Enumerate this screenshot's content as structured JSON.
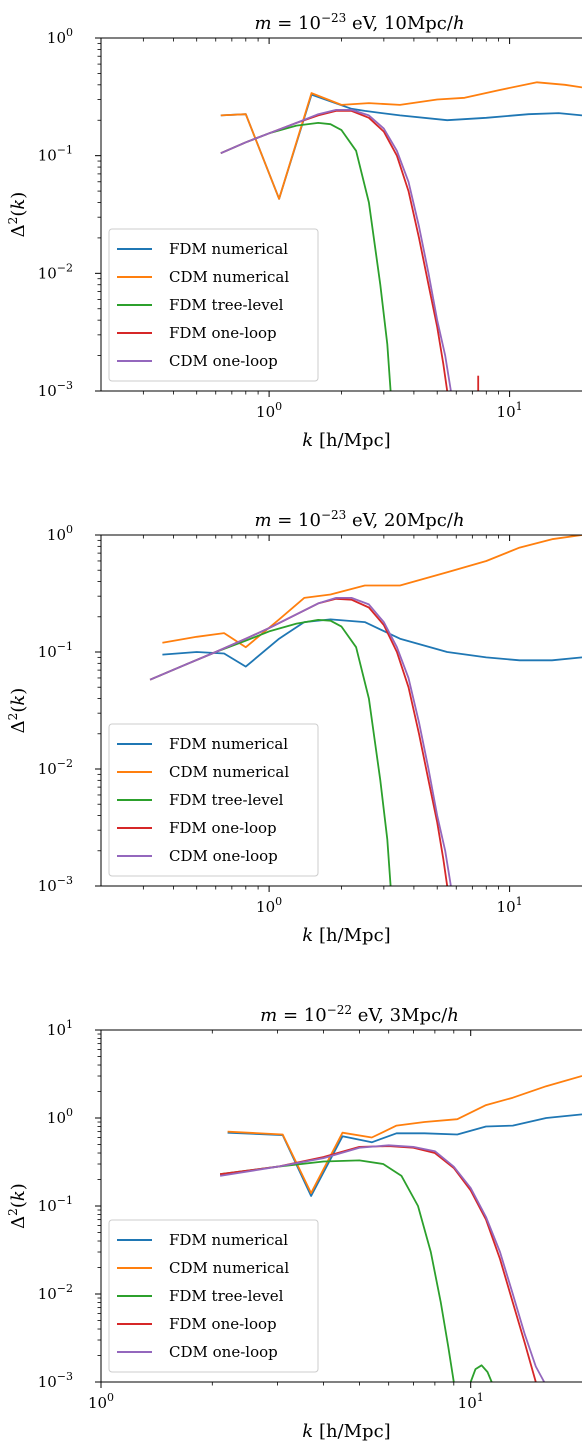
{
  "colors": {
    "FDM numerical": "#1f77b4",
    "CDM numerical": "#ff7f0e",
    "FDM tree-level": "#2ca02c",
    "FDM one-loop": "#d62728",
    "CDM one-loop": "#9467bd"
  },
  "chart_data": [
    {
      "type": "line",
      "title": "m = 10^{-23} eV, 10Mpc/h",
      "title_parts": {
        "pre": "m = 10",
        "exp": "−23",
        "post": " eV,  10Mpc/h"
      },
      "xlabel": "k [h/Mpc]",
      "ylabel": "Δ²(k)",
      "xscale": "log",
      "yscale": "log",
      "xlim": [
        0.2,
        20
      ],
      "ylim": [
        0.001,
        1
      ],
      "xticks": [
        1,
        10
      ],
      "xtick_labels": [
        "10^0",
        "10^1"
      ],
      "yticks": [
        0.001,
        0.01,
        0.1,
        1
      ],
      "ytick_labels": [
        "10^-3",
        "10^-2",
        "10^-1",
        "10^0"
      ],
      "legend": "lower-left",
      "series": [
        {
          "name": "FDM numerical",
          "x": [
            0.63,
            0.8,
            1.1,
            1.5,
            2.2,
            2.5,
            3.5,
            5.5,
            8,
            12,
            16,
            20
          ],
          "y": [
            0.22,
            0.225,
            0.043,
            0.33,
            0.25,
            0.24,
            0.22,
            0.2,
            0.21,
            0.225,
            0.23,
            0.22
          ]
        },
        {
          "name": "CDM numerical",
          "x": [
            0.63,
            0.8,
            1.1,
            1.5,
            2.0,
            2.6,
            3.5,
            5.0,
            6.5,
            9,
            13,
            17,
            20
          ],
          "y": [
            0.22,
            0.225,
            0.043,
            0.34,
            0.27,
            0.28,
            0.27,
            0.3,
            0.31,
            0.36,
            0.42,
            0.4,
            0.38
          ]
        },
        {
          "name": "FDM tree-level",
          "x": [
            0.63,
            0.8,
            1.0,
            1.3,
            1.6,
            1.8,
            2.0,
            2.3,
            2.6,
            2.9,
            3.1,
            3.2
          ],
          "y": [
            0.105,
            0.13,
            0.155,
            0.18,
            0.19,
            0.185,
            0.165,
            0.11,
            0.04,
            0.008,
            0.0025,
            0.001
          ]
        },
        {
          "name": "FDM one-loop",
          "x": [
            0.63,
            0.8,
            1.0,
            1.3,
            1.6,
            1.9,
            2.2,
            2.6,
            3.0,
            3.4,
            3.8,
            4.2,
            4.6,
            5.0,
            5.3,
            5.5
          ],
          "y": [
            0.105,
            0.13,
            0.155,
            0.19,
            0.22,
            0.24,
            0.24,
            0.21,
            0.16,
            0.1,
            0.05,
            0.02,
            0.008,
            0.0035,
            0.0017,
            0.001
          ]
        },
        {
          "name": "CDM one-loop",
          "x": [
            0.63,
            0.8,
            1.0,
            1.3,
            1.6,
            1.9,
            2.2,
            2.6,
            3.0,
            3.4,
            3.8,
            4.2,
            4.6,
            5.0,
            5.4,
            5.7
          ],
          "y": [
            0.105,
            0.13,
            0.155,
            0.19,
            0.225,
            0.245,
            0.245,
            0.22,
            0.17,
            0.11,
            0.06,
            0.025,
            0.01,
            0.004,
            0.002,
            0.001
          ]
        }
      ],
      "extra_marks": [
        {
          "series": "FDM one-loop",
          "x": [
            7.4,
            7.4
          ],
          "y": [
            0.001,
            0.00135
          ]
        }
      ]
    },
    {
      "type": "line",
      "title": "m = 10^{-23} eV, 20Mpc/h",
      "title_parts": {
        "pre": "m = 10",
        "exp": "−23",
        "post": " eV,  20Mpc/h"
      },
      "xlabel": "k [h/Mpc]",
      "ylabel": "Δ²(k)",
      "xscale": "log",
      "yscale": "log",
      "xlim": [
        0.2,
        20
      ],
      "ylim": [
        0.001,
        1
      ],
      "xticks": [
        1,
        10
      ],
      "xtick_labels": [
        "10^0",
        "10^1"
      ],
      "yticks": [
        0.001,
        0.01,
        0.1,
        1
      ],
      "ytick_labels": [
        "10^-3",
        "10^-2",
        "10^-1",
        "10^0"
      ],
      "legend": "lower-left",
      "series": [
        {
          "name": "FDM numerical",
          "x": [
            0.36,
            0.5,
            0.65,
            0.8,
            1.1,
            1.4,
            1.8,
            2.5,
            3.5,
            5.5,
            8,
            11,
            15,
            20
          ],
          "y": [
            0.095,
            0.1,
            0.097,
            0.075,
            0.13,
            0.18,
            0.19,
            0.18,
            0.13,
            0.1,
            0.09,
            0.085,
            0.085,
            0.09
          ]
        },
        {
          "name": "CDM numerical",
          "x": [
            0.36,
            0.5,
            0.65,
            0.8,
            1.1,
            1.4,
            1.8,
            2.5,
            3.5,
            5.5,
            8,
            11,
            15,
            20
          ],
          "y": [
            0.12,
            0.135,
            0.145,
            0.11,
            0.19,
            0.29,
            0.31,
            0.37,
            0.37,
            0.48,
            0.6,
            0.78,
            0.92,
            1.0
          ]
        },
        {
          "name": "FDM tree-level",
          "x": [
            0.32,
            0.45,
            0.6,
            0.8,
            1.0,
            1.3,
            1.6,
            1.8,
            2.0,
            2.3,
            2.6,
            2.9,
            3.1,
            3.2
          ],
          "y": [
            0.058,
            0.078,
            0.1,
            0.125,
            0.15,
            0.175,
            0.188,
            0.185,
            0.165,
            0.11,
            0.04,
            0.008,
            0.0025,
            0.001
          ]
        },
        {
          "name": "FDM one-loop",
          "x": [
            0.32,
            0.45,
            0.6,
            0.8,
            1.0,
            1.3,
            1.6,
            1.9,
            2.2,
            2.6,
            3.0,
            3.4,
            3.8,
            4.2,
            4.6,
            5.0,
            5.3,
            5.5
          ],
          "y": [
            0.058,
            0.078,
            0.1,
            0.13,
            0.16,
            0.21,
            0.26,
            0.285,
            0.28,
            0.24,
            0.17,
            0.1,
            0.05,
            0.02,
            0.008,
            0.0035,
            0.0017,
            0.001
          ]
        },
        {
          "name": "CDM one-loop",
          "x": [
            0.32,
            0.45,
            0.6,
            0.8,
            1.0,
            1.3,
            1.6,
            1.9,
            2.2,
            2.6,
            3.0,
            3.4,
            3.8,
            4.2,
            4.6,
            5.0,
            5.4,
            5.7
          ],
          "y": [
            0.058,
            0.078,
            0.1,
            0.13,
            0.16,
            0.21,
            0.26,
            0.29,
            0.29,
            0.255,
            0.18,
            0.11,
            0.06,
            0.025,
            0.01,
            0.004,
            0.002,
            0.001
          ]
        }
      ],
      "extra_marks": []
    },
    {
      "type": "line",
      "title": "m = 10^{-22} eV, 3Mpc/h",
      "title_parts": {
        "pre": "m = 10",
        "exp": "−22",
        "post": " eV,  3Mpc/h"
      },
      "xlabel": "k [h/Mpc]",
      "ylabel": "Δ²(k)",
      "xscale": "log",
      "yscale": "log",
      "xlim": [
        1,
        20
      ],
      "ylim": [
        0.001,
        10
      ],
      "xticks": [
        1,
        10
      ],
      "xtick_labels": [
        "10^0",
        "10^1"
      ],
      "yticks": [
        0.001,
        0.01,
        0.1,
        1,
        10
      ],
      "ytick_labels": [
        "10^-3",
        "10^-2",
        "10^-1",
        "10^0",
        "10^1"
      ],
      "legend": "lower-left",
      "series": [
        {
          "name": "FDM numerical",
          "x": [
            2.2,
            3.1,
            3.7,
            4.5,
            5.4,
            6.3,
            7.5,
            9.2,
            11,
            13,
            16,
            20
          ],
          "y": [
            0.68,
            0.64,
            0.13,
            0.62,
            0.53,
            0.67,
            0.67,
            0.65,
            0.8,
            0.82,
            1.0,
            1.1
          ]
        },
        {
          "name": "CDM numerical",
          "x": [
            2.2,
            3.1,
            3.7,
            4.5,
            5.4,
            6.3,
            7.5,
            9.2,
            11,
            13,
            16,
            20
          ],
          "y": [
            0.7,
            0.65,
            0.14,
            0.68,
            0.6,
            0.82,
            0.9,
            0.97,
            1.4,
            1.7,
            2.3,
            3.0
          ]
        },
        {
          "name": "FDM tree-level",
          "x": [
            2.1,
            3.0,
            4.0,
            5.0,
            5.8,
            6.5,
            7.2,
            7.8,
            8.3,
            8.7,
            9.0
          ],
          "y": [
            0.23,
            0.28,
            0.32,
            0.33,
            0.3,
            0.22,
            0.1,
            0.03,
            0.008,
            0.0025,
            0.001
          ]
        },
        {
          "name": "FDM tree-level",
          "x": [
            10.0,
            10.3,
            10.7,
            11.1,
            11.4
          ],
          "y": [
            0.001,
            0.0014,
            0.00155,
            0.0013,
            0.001
          ]
        },
        {
          "name": "FDM one-loop",
          "x": [
            2.1,
            3.0,
            4.0,
            5.0,
            6.0,
            7.0,
            8.0,
            9.0,
            10.0,
            11.0,
            12.0,
            13.0,
            14.0,
            15.0
          ],
          "y": [
            0.23,
            0.28,
            0.36,
            0.47,
            0.48,
            0.46,
            0.4,
            0.27,
            0.15,
            0.07,
            0.025,
            0.008,
            0.0028,
            0.001
          ]
        },
        {
          "name": "CDM one-loop",
          "x": [
            2.1,
            3.0,
            4.0,
            5.0,
            6.0,
            7.0,
            8.0,
            9.0,
            10.0,
            11.0,
            12.0,
            13.0,
            14.0,
            15.0,
            15.8
          ],
          "y": [
            0.22,
            0.28,
            0.35,
            0.46,
            0.49,
            0.47,
            0.42,
            0.28,
            0.16,
            0.075,
            0.03,
            0.01,
            0.0035,
            0.0015,
            0.001
          ]
        }
      ],
      "extra_marks": []
    }
  ],
  "legend_entries": [
    "FDM numerical",
    "CDM numerical",
    "FDM tree-level",
    "FDM one-loop",
    "CDM one-loop"
  ]
}
